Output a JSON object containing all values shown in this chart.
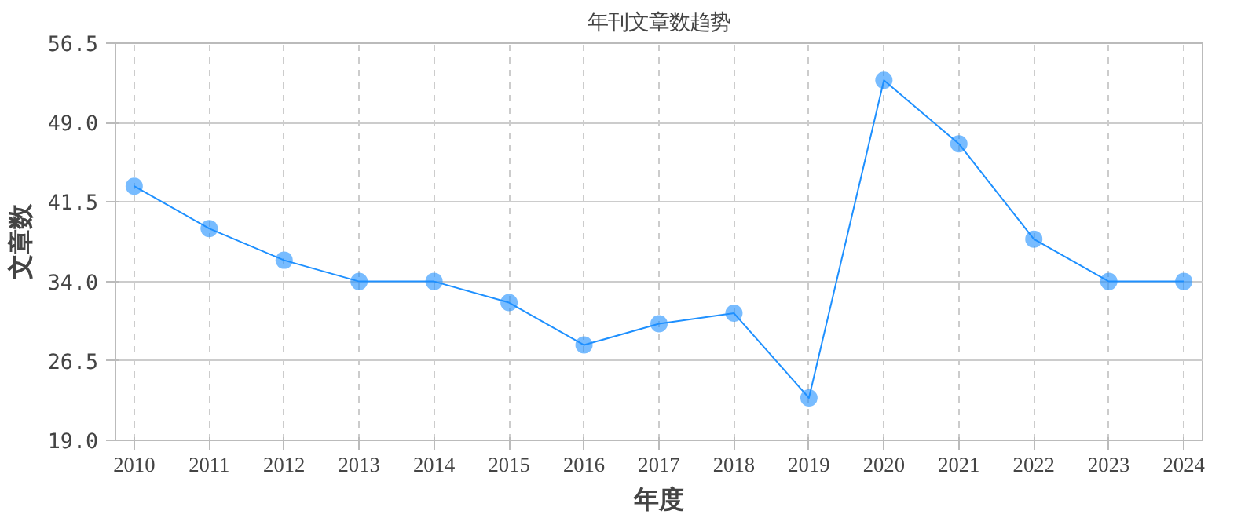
{
  "chart_data": {
    "type": "line",
    "title": "年刊文章数趋势",
    "xlabel": "年度",
    "ylabel": "文章数",
    "categories": [
      "2010",
      "2011",
      "2012",
      "2013",
      "2014",
      "2015",
      "2016",
      "2017",
      "2018",
      "2019",
      "2020",
      "2021",
      "2022",
      "2023",
      "2024"
    ],
    "series": [
      {
        "color": "#1e90ff",
        "values": [
          43,
          39,
          36,
          34,
          34,
          32,
          28,
          30,
          31,
          23,
          53,
          47,
          38,
          34,
          34
        ]
      }
    ],
    "ylim": [
      19,
      56.5
    ],
    "yticks": [
      {
        "value": 19,
        "label": "19.0"
      },
      {
        "value": 26.5,
        "label": "26.5"
      },
      {
        "value": 34,
        "label": "34.0"
      },
      {
        "value": 41.5,
        "label": "41.5"
      },
      {
        "value": 49,
        "label": "49.0"
      },
      {
        "value": 56.5,
        "label": "56.5"
      }
    ],
    "grid": true,
    "marker": "circle",
    "line_style": "solid"
  }
}
